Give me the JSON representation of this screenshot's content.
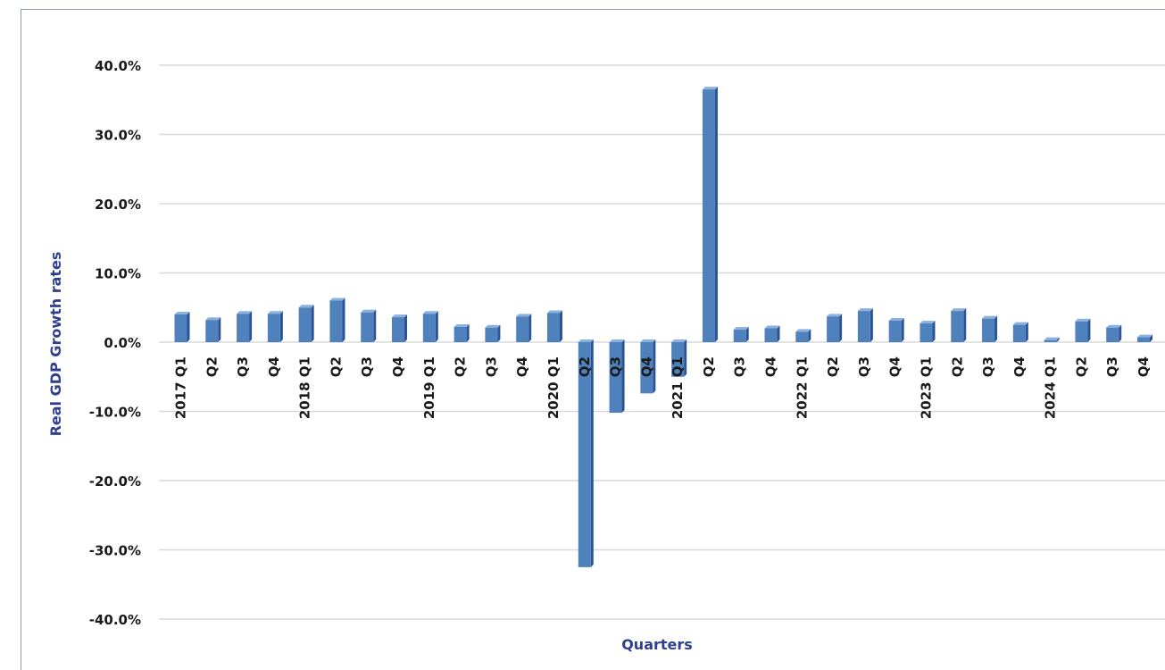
{
  "chart_data": {
    "type": "bar",
    "title": "",
    "xlabel": "Quarters",
    "ylabel": "Real GDP Growth rates",
    "ylim": [
      -40,
      40
    ],
    "yticks": [
      "40.0%",
      "30.0%",
      "20.0%",
      "10.0%",
      "0.0%",
      "-10.0%",
      "-20.0%",
      "-30.0%",
      "-40.0%"
    ],
    "grid": true,
    "colors": {
      "bar_front": "#4f81bd",
      "bar_side": "#2a5496",
      "bar_top": "#8db1df",
      "grid": "#d9d9d9",
      "axis_label": "#2e3f8f"
    },
    "categories": [
      "2017 Q1",
      "Q2",
      "Q3",
      "Q4",
      "2018 Q1",
      "Q2",
      "Q3",
      "Q4",
      "2019 Q1",
      "Q2",
      "Q3",
      "Q4",
      "2020 Q1",
      "Q2",
      "Q3",
      "Q4",
      "2021 Q1",
      "Q2",
      "Q3",
      "Q4",
      "2022 Q1",
      "Q2",
      "Q3",
      "Q4",
      "2023 Q1",
      "Q2",
      "Q3",
      "Q4",
      "2024 Q1",
      "Q2",
      "Q3",
      "Q4"
    ],
    "values": [
      4.0,
      3.2,
      4.1,
      4.1,
      5.0,
      6.0,
      4.3,
      3.6,
      4.1,
      2.2,
      2.1,
      3.7,
      4.2,
      -32.5,
      -10.2,
      -7.4,
      -5.0,
      36.5,
      1.8,
      2.0,
      1.5,
      3.7,
      4.5,
      3.1,
      2.7,
      4.5,
      3.4,
      2.5,
      0.3,
      3.0,
      2.1,
      0.7
    ]
  }
}
